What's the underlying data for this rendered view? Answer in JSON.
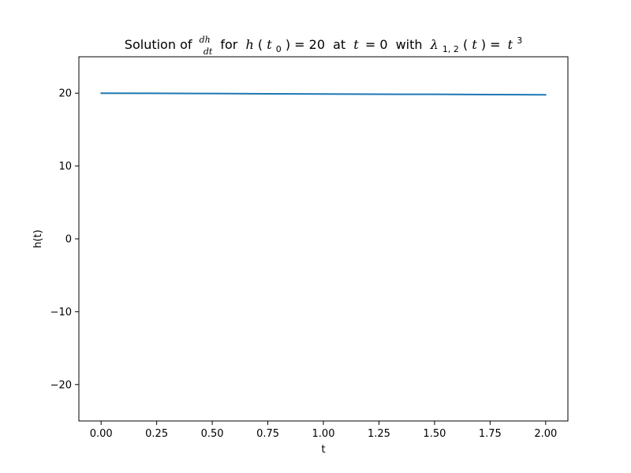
{
  "chart_data": {
    "type": "line",
    "title": {
      "prefix": "Solution of",
      "frac_num": "dh",
      "frac_den": "dt",
      "mid1": "for",
      "h": "h",
      "t_sym": "t",
      "sub0": "0",
      "eq20": ") = 20",
      "at": "at",
      "eq0": "= 0",
      "with": "with",
      "lambda": "λ",
      "lambda_sub": "1, 2",
      "lambda_arg": "(",
      "lambda_arg_end": ") =",
      "pow": "3"
    },
    "xlabel": "t",
    "ylabel": "h(t)",
    "xlim": [
      -0.1,
      2.1
    ],
    "ylim": [
      -25,
      25
    ],
    "xticks": [
      0.0,
      0.25,
      0.5,
      0.75,
      1.0,
      1.25,
      1.5,
      1.75,
      2.0
    ],
    "xtick_labels": [
      "0.00",
      "0.25",
      "0.50",
      "0.75",
      "1.00",
      "1.25",
      "1.50",
      "1.75",
      "2.00"
    ],
    "yticks": [
      -20,
      -10,
      0,
      10,
      20
    ],
    "ytick_labels": [
      "−20",
      "−10",
      "0",
      "10",
      "20"
    ],
    "grid": false,
    "series": [
      {
        "color": "#1f77b4",
        "x": [
          0.0,
          0.25,
          0.5,
          0.75,
          1.0,
          1.25,
          1.5,
          1.75,
          2.0
        ],
        "y": [
          20.0,
          19.98,
          19.95,
          19.92,
          19.89,
          19.86,
          19.84,
          19.81,
          19.78
        ]
      }
    ]
  }
}
